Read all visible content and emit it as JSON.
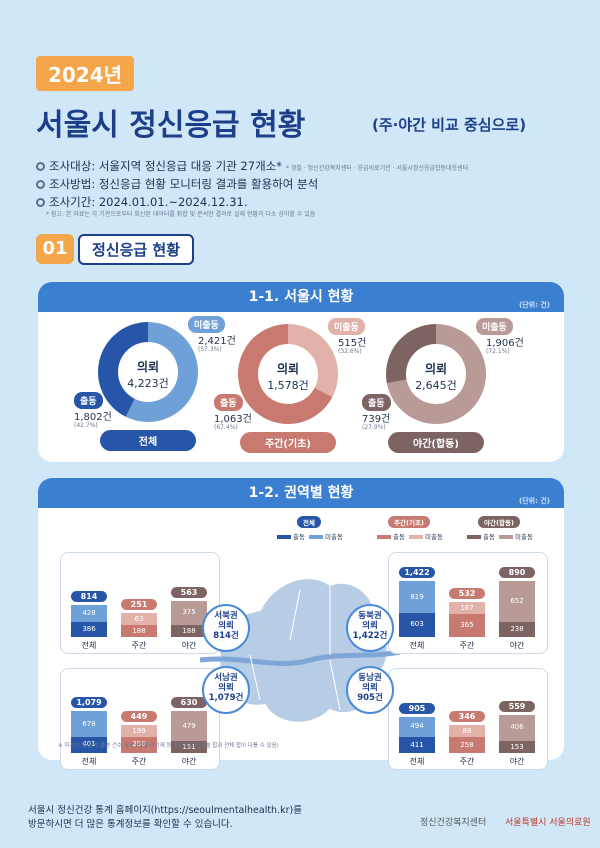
{
  "header": {
    "year": "2024년",
    "title": "서울시 정신응급 현황",
    "subtitle": "(주·야간 비교 중심으로)"
  },
  "meta": {
    "target_label": "조사대상: 서울지역 정신응급 대응 기관 27개소*",
    "target_note": "* 경찰 · 정신건강복지센터 · 응급의료기관 · 서울시정신응급합동대응센터",
    "method_label": "조사방법: 정신응급 현황 모니터링 결과를 활용하여 분석",
    "period_label": "조사기간: 2024.01.01.~2024.12.31.",
    "period_note": "* 참고: 본 자료는 각 기관으로부터 회신된 데이터를 취합 및 분석한 결과로 실제 현황과 다소 상이할 수 있음"
  },
  "section": {
    "number": "01",
    "title": "정신응급 현황"
  },
  "panel1": {
    "title": "1-1. 서울시 현황",
    "unit": "(단위: 건)"
  },
  "panel2": {
    "title": "1-2. 권역별 현황",
    "unit": "(단위: 건)"
  },
  "colors": {
    "total_dispatch": "#2756a8",
    "total_nondispatch": "#6fa0d8",
    "day_dispatch": "#c87a70",
    "day_nondispatch": "#e2b2aa",
    "night_dispatch": "#7d6462",
    "night_nondispatch": "#b89a96",
    "accent": "#3b7fd0",
    "year_badge": "#f5a54a"
  },
  "donuts": [
    {
      "name": "전체",
      "center_title": "의뢰",
      "center_value": "4,223건",
      "dispatch_label": "출동",
      "dispatch_value": "1,802건",
      "dispatch_pct": "(42.7%)",
      "nondispatch_label": "미출동",
      "nondispatch_value": "2,421건",
      "nondispatch_pct": "(57.3%)",
      "dispatch": 1802,
      "nondispatch": 2421
    },
    {
      "name": "주간(기초)",
      "center_title": "의뢰",
      "center_value": "1,578건",
      "dispatch_label": "출동",
      "dispatch_value": "1,063건",
      "dispatch_pct": "(67.4%)",
      "nondispatch_label": "미출동",
      "nondispatch_value": "515건",
      "nondispatch_pct": "(32.6%)",
      "dispatch": 1063,
      "nondispatch": 515
    },
    {
      "name": "야간(합동)",
      "center_title": "의뢰",
      "center_value": "2,645건",
      "dispatch_label": "출동",
      "dispatch_value": "739건",
      "dispatch_pct": "(27.9%)",
      "nondispatch_label": "미출동",
      "nondispatch_value": "1,906건",
      "nondispatch_pct": "(72.1%)",
      "dispatch": 739,
      "nondispatch": 1906
    }
  ],
  "legend": [
    {
      "title": "전체",
      "items": [
        "출동",
        "미출동"
      ]
    },
    {
      "title": "주간(기초)",
      "items": [
        "출동",
        "미출동"
      ]
    },
    {
      "title": "야간(합동)",
      "items": [
        "출동",
        "미출동"
      ]
    }
  ],
  "chart_data": {
    "type": "bar",
    "title": "1-2. 권역별 현황",
    "categories": [
      "전체",
      "주간",
      "야간"
    ],
    "regions": [
      {
        "name": "서북권",
        "bubble": [
          "서북권",
          "의뢰",
          "814건"
        ],
        "totals": [
          814,
          251,
          563
        ],
        "dispatch": [
          386,
          188,
          188
        ],
        "nondispatch": [
          428,
          63,
          375
        ]
      },
      {
        "name": "동북권",
        "bubble": [
          "동북권",
          "의뢰",
          "1,422건"
        ],
        "totals": [
          1422,
          532,
          890
        ],
        "dispatch": [
          603,
          365,
          238
        ],
        "nondispatch": [
          819,
          167,
          652
        ]
      },
      {
        "name": "서남권",
        "bubble": [
          "서남권",
          "의뢰",
          "1,079건"
        ],
        "totals": [
          1079,
          449,
          630
        ],
        "dispatch": [
          401,
          250,
          151
        ],
        "nondispatch": [
          678,
          199,
          479
        ]
      },
      {
        "name": "동남권",
        "bubble": [
          "동남권",
          "의뢰",
          "905건"
        ],
        "totals": [
          905,
          346,
          559
        ],
        "dispatch": [
          411,
          258,
          153
        ],
        "nondispatch": [
          494,
          88,
          406
        ]
      }
    ]
  },
  "map_note": "※ 미지정 및 권역 불명 건수 제외 (경찰 미기재 등 포함되어 권역별 합과 전체 합이 다를 수 있음)",
  "footer": {
    "line1": "서울시 정신건강 통계 홈페이지(https://seoulmentalhealth.kr)를",
    "line2": "방문하시면 더 많은 통계정보를 확인할 수 있습니다.",
    "logo1": "정신건강복지센터",
    "logo2": "서울특별시 서울의료원"
  }
}
